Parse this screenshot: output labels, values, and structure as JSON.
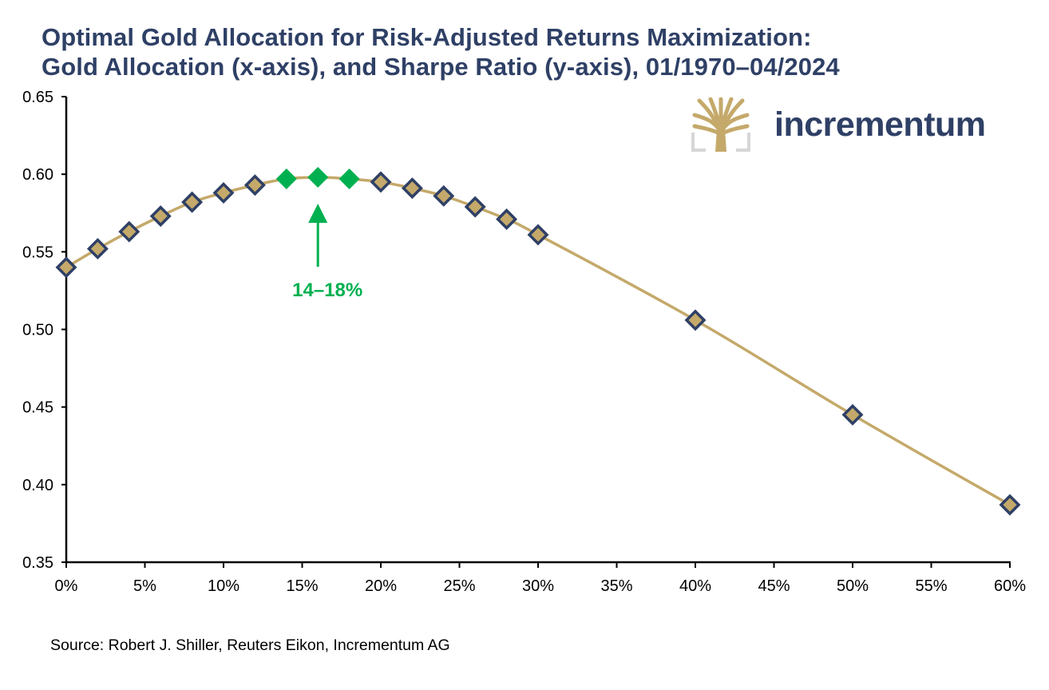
{
  "title_lines": [
    "Optimal Gold Allocation for Risk-Adjusted Returns Maximization:",
    "Gold Allocation (x-axis), and Sharpe Ratio (y-axis), 01/1970–04/2024"
  ],
  "source": "Source: Robert J. Shiller, Reuters Eikon, Incrementum AG",
  "logo": {
    "text": "incrementum",
    "icon": "tree-icon"
  },
  "colors": {
    "title": "#2f4066",
    "line": "#c4a96a",
    "marker_fill": "#c4a96a",
    "marker_stroke": "#2f4066",
    "highlight": "#00b050"
  },
  "chart_data": {
    "type": "line",
    "title": "Optimal Gold Allocation for Risk-Adjusted Returns Maximization: Gold Allocation (x-axis), and Sharpe Ratio (y-axis), 01/1970–04/2024",
    "xlabel": "Gold Allocation",
    "ylabel": "Sharpe Ratio",
    "xlim": [
      0,
      60
    ],
    "ylim": [
      0.35,
      0.65
    ],
    "x_ticks": [
      0,
      5,
      10,
      15,
      20,
      25,
      30,
      35,
      40,
      45,
      50,
      55,
      60
    ],
    "x_tick_labels": [
      "0%",
      "5%",
      "10%",
      "15%",
      "20%",
      "25%",
      "30%",
      "35%",
      "40%",
      "45%",
      "50%",
      "55%",
      "60%"
    ],
    "y_ticks": [
      0.35,
      0.4,
      0.45,
      0.5,
      0.55,
      0.6,
      0.65
    ],
    "y_tick_labels": [
      "0.35",
      "0.40",
      "0.45",
      "0.50",
      "0.55",
      "0.60",
      "0.65"
    ],
    "grid": false,
    "legend": "none",
    "series": [
      {
        "name": "Sharpe Ratio",
        "x": [
          0,
          2,
          4,
          6,
          8,
          10,
          12,
          14,
          16,
          18,
          20,
          22,
          24,
          26,
          28,
          30,
          40,
          50,
          60
        ],
        "y": [
          0.54,
          0.552,
          0.563,
          0.573,
          0.582,
          0.588,
          0.593,
          0.597,
          0.598,
          0.597,
          0.595,
          0.591,
          0.586,
          0.579,
          0.571,
          0.561,
          0.506,
          0.445,
          0.387
        ],
        "highlighted_x": [
          14,
          16,
          18
        ]
      }
    ],
    "annotations": [
      {
        "text": "14–18%",
        "x": 16,
        "arrow_to_y": 0.598
      }
    ]
  }
}
